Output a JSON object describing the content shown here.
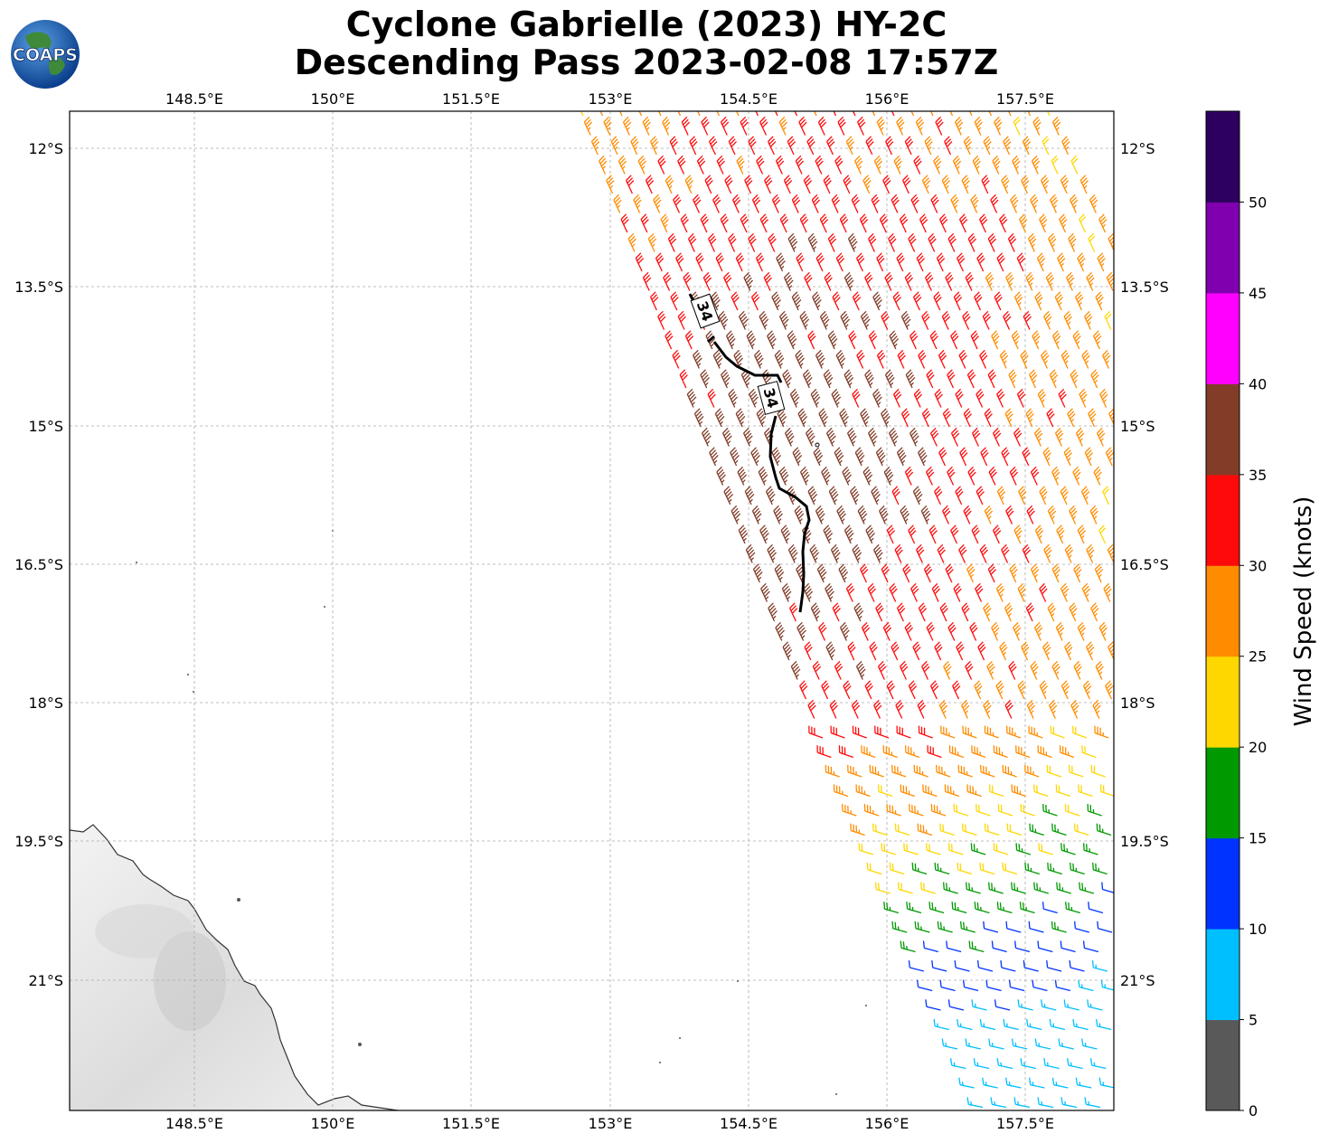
{
  "title": {
    "line1": "Cyclone Gabrielle (2023) HY-2C",
    "line2": "Descending Pass 2023-02-08 17:57Z"
  },
  "logo": {
    "text": "COAPS",
    "icon": "globe-icon"
  },
  "map": {
    "lon_ticks": [
      "148.5°E",
      "150°E",
      "151.5°E",
      "153°E",
      "154.5°E",
      "156°E",
      "157.5°E"
    ],
    "lat_ticks": [
      "12°S",
      "13.5°S",
      "15°S",
      "16.5°S",
      "18°S",
      "19.5°S",
      "21°S"
    ],
    "lon_range": [
      147.2,
      158.5
    ],
    "lat_range": [
      -11.6,
      -22.4
    ],
    "gridlines": true,
    "land": "Queensland coast (bottom-left)"
  },
  "contour": {
    "labels": [
      "34",
      "34"
    ],
    "level_kt": 34
  },
  "colorbar": {
    "label": "Wind Speed (knots)",
    "ticks": [
      "0",
      "5",
      "10",
      "15",
      "20",
      "25",
      "30",
      "35",
      "40",
      "45",
      "50"
    ],
    "bins": [
      {
        "min": 0,
        "max": 5,
        "color": "#595959"
      },
      {
        "min": 5,
        "max": 10,
        "color": "#00bfff"
      },
      {
        "min": 10,
        "max": 15,
        "color": "#0033ff"
      },
      {
        "min": 15,
        "max": 20,
        "color": "#009900"
      },
      {
        "min": 20,
        "max": 25,
        "color": "#ffd700"
      },
      {
        "min": 25,
        "max": 30,
        "color": "#ff8c00"
      },
      {
        "min": 30,
        "max": 35,
        "color": "#ff0a0a"
      },
      {
        "min": 35,
        "max": 40,
        "color": "#823c28"
      },
      {
        "min": 40,
        "max": 45,
        "color": "#ff00ff"
      },
      {
        "min": 45,
        "max": 50,
        "color": "#8000b0"
      },
      {
        "min": 50,
        "max": 55,
        "color": "#2d0060"
      }
    ]
  }
}
